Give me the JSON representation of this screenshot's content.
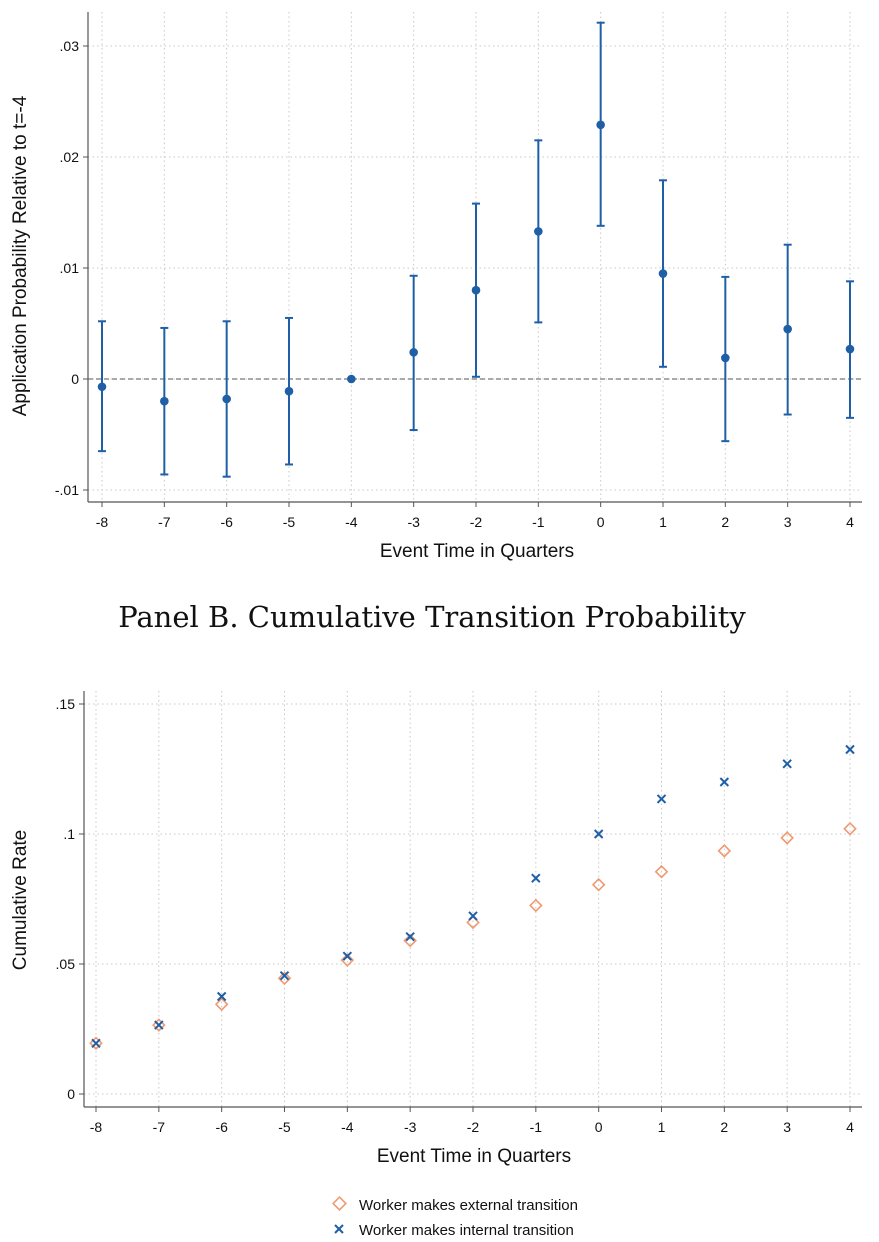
{
  "colors": {
    "blue": "#1f5fa6",
    "orange": "#ef9a72",
    "zero_line": "#777777",
    "grid": "#c8c8c8",
    "axis": "#555555"
  },
  "panel_b_title": "Panel B. Cumulative Transition Probability",
  "chart_data": [
    {
      "type": "scatter",
      "subtype": "coefficient-plot-with-95ci",
      "title": "",
      "xlabel": "Event Time in Quarters",
      "ylabel": "Application Probability Relative to t=-4",
      "xlim": [
        -8,
        4
      ],
      "ylim": [
        -0.01,
        0.032
      ],
      "x_ticks": [
        -8,
        -7,
        -6,
        -5,
        -4,
        -3,
        -2,
        -1,
        0,
        1,
        2,
        3,
        4
      ],
      "x_tick_labels": [
        "-8",
        "-7",
        "-6",
        "-5",
        "-4",
        "-3",
        "-2",
        "-1",
        "0",
        "1",
        "2",
        "3",
        "4"
      ],
      "y_ticks": [
        -0.01,
        0,
        0.01,
        0.02,
        0.03
      ],
      "y_tick_labels": [
        "-.01",
        "0",
        ".01",
        ".02",
        ".03"
      ],
      "reference_line": {
        "y": 0,
        "style": "dashed"
      },
      "grid": "dotted",
      "x": [
        -8,
        -7,
        -6,
        -5,
        -4,
        -3,
        -2,
        -1,
        0,
        1,
        2,
        3,
        4
      ],
      "estimate": [
        -0.0007,
        -0.002,
        -0.0018,
        -0.0011,
        0.0,
        0.0024,
        0.008,
        0.0133,
        0.0229,
        0.0095,
        0.0019,
        0.0045,
        0.0027
      ],
      "ci_low": [
        -0.0065,
        -0.0086,
        -0.0088,
        -0.0077,
        0.0,
        -0.0046,
        0.0002,
        0.0051,
        0.0138,
        0.0011,
        -0.0056,
        -0.0032,
        -0.0035
      ],
      "ci_high": [
        0.0052,
        0.0046,
        0.0052,
        0.0055,
        0.0,
        0.0093,
        0.0158,
        0.0215,
        0.0321,
        0.0179,
        0.0092,
        0.0121,
        0.0088
      ]
    },
    {
      "type": "scatter",
      "title": "Panel B. Cumulative Transition Probability",
      "xlabel": "Event Time in Quarters",
      "ylabel": "Cumulative Rate",
      "xlim": [
        -8,
        4
      ],
      "ylim": [
        0,
        0.15
      ],
      "x_ticks": [
        -8,
        -7,
        -6,
        -5,
        -4,
        -3,
        -2,
        -1,
        0,
        1,
        2,
        3,
        4
      ],
      "x_tick_labels": [
        "-8",
        "-7",
        "-6",
        "-5",
        "-4",
        "-3",
        "-2",
        "-1",
        "0",
        "1",
        "2",
        "3",
        "4"
      ],
      "y_ticks": [
        0,
        0.05,
        0.1,
        0.15
      ],
      "y_tick_labels": [
        "0",
        ".05",
        ".1",
        ".15"
      ],
      "grid": "dotted",
      "legend": "bottom",
      "x": [
        -8,
        -7,
        -6,
        -5,
        -4,
        -3,
        -2,
        -1,
        0,
        1,
        2,
        3,
        4
      ],
      "series": [
        {
          "name": "Worker makes external transition",
          "marker": "diamond",
          "values": [
            0.0195,
            0.0265,
            0.0345,
            0.0445,
            0.0515,
            0.059,
            0.066,
            0.0725,
            0.0805,
            0.0855,
            0.0935,
            0.0985,
            0.102
          ]
        },
        {
          "name": "Worker makes internal transition",
          "marker": "x",
          "values": [
            0.0195,
            0.0265,
            0.0375,
            0.0455,
            0.053,
            0.0605,
            0.0685,
            0.083,
            0.1,
            0.1135,
            0.12,
            0.127,
            0.1325
          ]
        }
      ]
    }
  ]
}
